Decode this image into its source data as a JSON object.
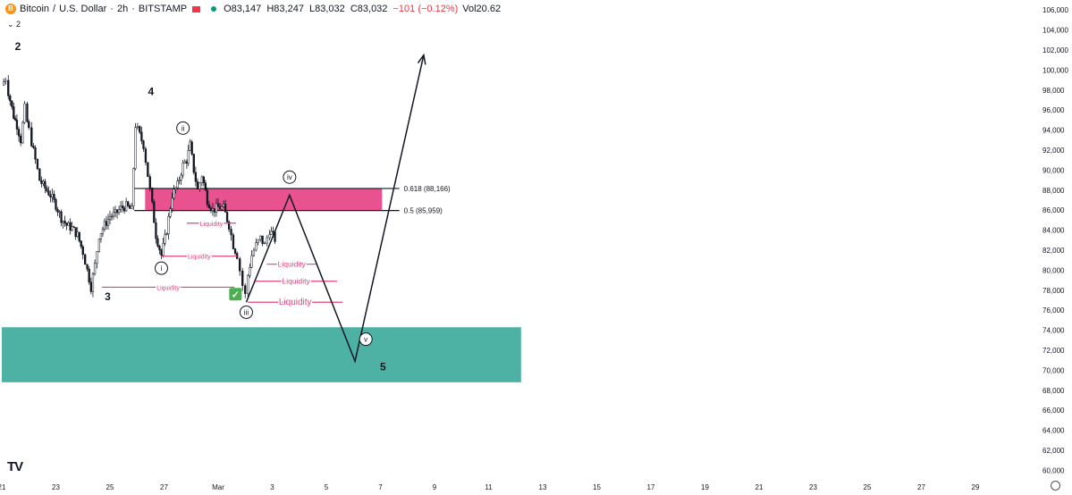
{
  "header": {
    "coin_glyph": "B",
    "symbol": "Bitcoin",
    "quote": "U.S. Dollar",
    "interval": "2h",
    "exchange": "BITSTAMP",
    "ohlc": {
      "open": "O83,147",
      "high": "H83,247",
      "low": "L83,032",
      "close": "C83,032",
      "change": "−101 (−0.12%)"
    },
    "volume": "Vol20.62",
    "indicator_toggle": "⌄ 2",
    "logo": "TV",
    "colors": {
      "coin": "#f7931a",
      "flag": "#f23645",
      "status_dot": "#089981"
    }
  },
  "chart_data": {
    "type": "candlestick",
    "y_ticks": [
      "60,000",
      "62,000",
      "64,000",
      "66,000",
      "68,000",
      "70,000",
      "72,000",
      "74,000",
      "76,000",
      "78,000",
      "80,000",
      "82,000",
      "84,000",
      "86,000",
      "88,000",
      "90,000",
      "92,000",
      "94,000",
      "96,000",
      "98,000",
      "100,000",
      "102,000",
      "104,000",
      "106,000"
    ],
    "ylim": [
      59500,
      107000
    ],
    "x_ticks": [
      "21",
      "23",
      "25",
      "27",
      "Mar",
      "3",
      "5",
      "7",
      "9",
      "11",
      "13",
      "15",
      "17",
      "19",
      "21",
      "23",
      "25",
      "27",
      "29"
    ],
    "price_path": [
      [
        0,
        98500
      ],
      [
        0.07,
        99200
      ],
      [
        0.12,
        97800
      ],
      [
        0.22,
        95400
      ],
      [
        0.28,
        94500
      ],
      [
        0.35,
        93000
      ],
      [
        0.42,
        96200
      ],
      [
        0.47,
        94800
      ],
      [
        0.5,
        94000
      ],
      [
        0.55,
        92800
      ],
      [
        0.62,
        91000
      ],
      [
        0.7,
        89000
      ],
      [
        0.8,
        88200
      ],
      [
        0.9,
        87500
      ],
      [
        1.0,
        86500
      ],
      [
        1.1,
        85200
      ],
      [
        1.2,
        84500
      ],
      [
        1.3,
        84200
      ],
      [
        1.4,
        83500
      ],
      [
        1.5,
        81800
      ],
      [
        1.58,
        80000
      ],
      [
        1.65,
        78300
      ],
      [
        1.72,
        80500
      ],
      [
        1.8,
        83500
      ],
      [
        1.9,
        84500
      ],
      [
        2.0,
        85400
      ],
      [
        2.1,
        85600
      ],
      [
        2.2,
        86200
      ],
      [
        2.3,
        86400
      ],
      [
        2.4,
        86000
      ],
      [
        2.47,
        94500
      ],
      [
        2.55,
        93500
      ],
      [
        2.62,
        92500
      ],
      [
        2.7,
        89500
      ],
      [
        2.78,
        86500
      ],
      [
        2.85,
        83500
      ],
      [
        2.95,
        81500
      ],
      [
        3.05,
        84000
      ],
      [
        3.15,
        87500
      ],
      [
        3.25,
        88500
      ],
      [
        3.35,
        90500
      ],
      [
        3.42,
        91000
      ],
      [
        3.48,
        92500
      ],
      [
        3.55,
        90000
      ],
      [
        3.62,
        88000
      ],
      [
        3.7,
        89500
      ],
      [
        3.8,
        87000
      ],
      [
        3.9,
        86000
      ],
      [
        4.0,
        86300
      ],
      [
        4.1,
        86200
      ],
      [
        4.2,
        84500
      ],
      [
        4.28,
        82500
      ],
      [
        4.35,
        81500
      ],
      [
        4.4,
        80000
      ],
      [
        4.45,
        78500
      ],
      [
        4.5,
        77500
      ],
      [
        4.55,
        79500
      ],
      [
        4.62,
        81500
      ],
      [
        4.7,
        82500
      ],
      [
        4.78,
        83200
      ],
      [
        4.86,
        82500
      ],
      [
        4.95,
        84000
      ],
      [
        5.05,
        83100
      ]
    ],
    "elliott_labels": [
      {
        "label": "2",
        "x": 0.0,
        "y": 102000
      },
      {
        "label": "3",
        "x": 1.66,
        "y": 77000
      },
      {
        "label": "4",
        "x": 2.46,
        "y": 97500
      },
      {
        "label": "5",
        "x": 6.75,
        "y": 70000
      }
    ],
    "minor_wave_labels": [
      {
        "label": "i",
        "x": 2.95,
        "y": 80200
      },
      {
        "label": "ii",
        "x": 3.35,
        "y": 94200
      },
      {
        "label": "iii",
        "x": 4.52,
        "y": 75800
      },
      {
        "label": "iv",
        "x": 5.32,
        "y": 89300
      },
      {
        "label": "v",
        "x": 6.73,
        "y": 73100
      }
    ],
    "projection": [
      [
        4.52,
        76800
      ],
      [
        5.32,
        87500
      ],
      [
        6.53,
        70900
      ],
      [
        7.8,
        101500
      ]
    ],
    "rising_wedge_line": [
      [
        4.52,
        76800
      ],
      [
        5.32,
        87500
      ]
    ],
    "zones": [
      {
        "name": "supply",
        "x0": 2.65,
        "x1": 7.03,
        "y0": 85959,
        "y1": 88166,
        "color": "#e8538f"
      },
      {
        "name": "demand",
        "x0": 0.0,
        "x1": 9.6,
        "y0": 68800,
        "y1": 74300,
        "color": "#4db2a4"
      }
    ],
    "fib_levels": [
      {
        "label": "0.618 (88,166)",
        "value": 88166,
        "x0": 2.45,
        "x1": 7.35
      },
      {
        "label": "0.5 (85,959)",
        "value": 85959,
        "x0": 2.45,
        "x1": 7.35
      }
    ],
    "liquidity_lines": [
      {
        "label": "Liquidity",
        "x0": 1.85,
        "x1": 4.3,
        "y": 78300,
        "size": "small"
      },
      {
        "label": "Liquidity",
        "x0": 2.95,
        "x1": 4.35,
        "y": 81400,
        "size": "small"
      },
      {
        "label": "Liquidity",
        "x0": 3.42,
        "x1": 4.33,
        "y": 84700,
        "size": "small"
      },
      {
        "label": "Liquidity",
        "x0": 4.55,
        "x1": 6.3,
        "y": 76800,
        "size": "large"
      },
      {
        "label": "Liquidity",
        "x0": 4.68,
        "x1": 6.2,
        "y": 78900,
        "size": "medium"
      },
      {
        "label": "Liquidity",
        "x0": 4.9,
        "x1": 5.82,
        "y": 80600,
        "size": "medium"
      }
    ],
    "checkmark": {
      "glyph": "✓",
      "x": 4.32,
      "y": 77600,
      "color": "#4caf50"
    },
    "colors": {
      "liquidity": "#e0457b",
      "fib_line": "#131722",
      "candle": "#131722"
    }
  }
}
